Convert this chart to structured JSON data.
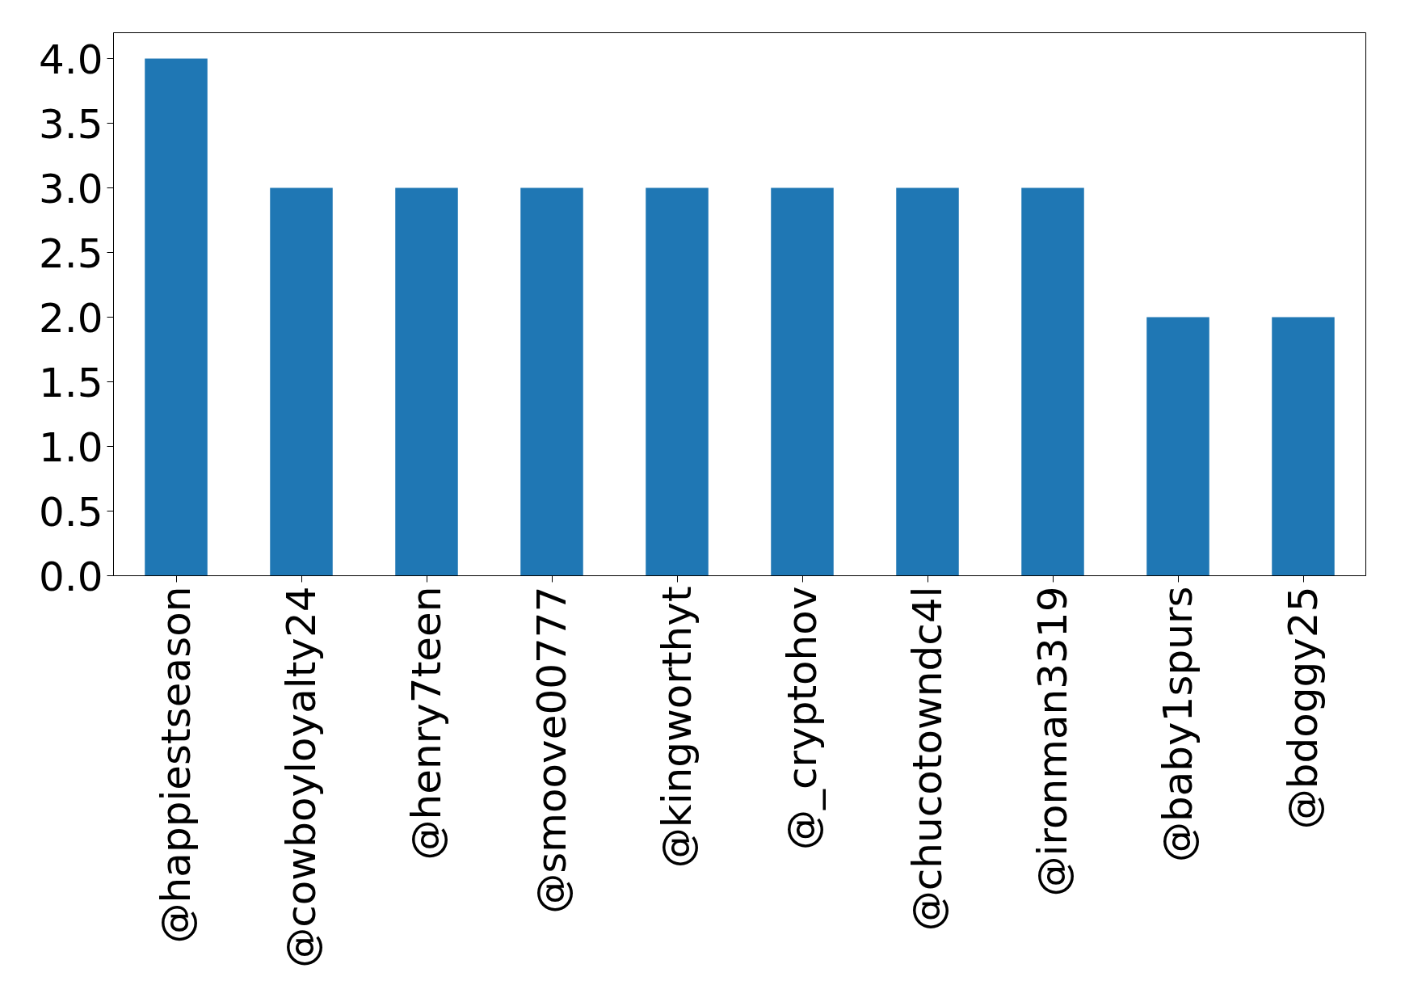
{
  "chart_data": {
    "type": "bar",
    "categories": [
      "@happiestseason",
      "@cowboyloyalty24",
      "@henry7teen",
      "@smoove00777",
      "@kingworthyt",
      "@_cryptohov",
      "@chucotowndc4l",
      "@ironman3319",
      "@baby1spurs",
      "@bdoggy25"
    ],
    "values": [
      4,
      3,
      3,
      3,
      3,
      3,
      3,
      3,
      2,
      2
    ],
    "color": "#1f77b4",
    "ylim": [
      0,
      4.2
    ],
    "yticks": [
      {
        "value": 0,
        "label": "0.0"
      },
      {
        "value": 0.5,
        "label": "0.5"
      },
      {
        "value": 1,
        "label": "1.0"
      },
      {
        "value": 1.5,
        "label": "1.5"
      },
      {
        "value": 2,
        "label": "2.0"
      },
      {
        "value": 2.5,
        "label": "2.5"
      },
      {
        "value": 3,
        "label": "3.0"
      },
      {
        "value": 3.5,
        "label": "3.5"
      },
      {
        "value": 4,
        "label": "4.0"
      }
    ],
    "grid": false
  }
}
